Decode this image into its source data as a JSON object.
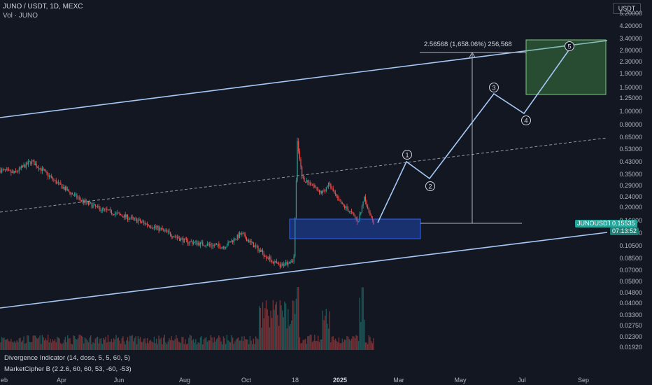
{
  "header": {
    "title": "JUNO / USDT, 1D, MEXC",
    "volume_label": "Vol · JUNO"
  },
  "indicators": {
    "divergence": "Divergence Indicator (14, dose, 5, 5, 60, 5)",
    "marketcipher": "MarketCipher B (2.2.6, 60, 60, 53, -60, -53)"
  },
  "price_axis": {
    "unit": "USDT",
    "labels": [
      "5.20000",
      "4.20000",
      "3.40000",
      "2.80000",
      "2.30000",
      "1.90000",
      "1.50000",
      "1.25000",
      "1.00000",
      "0.80000",
      "0.65000",
      "0.53000",
      "0.43000",
      "0.35000",
      "0.29000",
      "0.24000",
      "0.20000",
      "0.16000",
      "0.13000",
      "0.10500",
      "0.08500",
      "0.07000",
      "0.05800",
      "0.04800",
      "0.04000",
      "0.03300",
      "0.02750",
      "0.02300",
      "0.01920"
    ]
  },
  "time_axis": {
    "labels": [
      "eb",
      "Apr",
      "Jun",
      "Aug",
      "Oct",
      "18",
      "2025",
      "Mar",
      "May",
      "Jul",
      "Sep"
    ]
  },
  "current": {
    "symbol": "JUNOUSDT",
    "price": "0.15535",
    "countdown": "07:13:52"
  },
  "measure": {
    "text": "2.56568 (1,658.06%) 256,568"
  },
  "waves": [
    "1",
    "2",
    "3",
    "4",
    "5"
  ],
  "colors": {
    "up": "#26a69a",
    "down": "#ef5350",
    "channel": "#a5c8f5",
    "box": "#2962ff",
    "target": "#4caf50"
  },
  "chart_data": {
    "type": "candlestick",
    "symbol": "JUNO/USDT",
    "interval": "1D",
    "exchange": "MEXC",
    "y_scale": "log",
    "y_range": [
      0.0192,
      5.2
    ],
    "last_price": 0.15535,
    "measure": {
      "change": 2.56568,
      "change_percent": 1658.06,
      "ticks": 256568
    },
    "wave_targets": [
      {
        "label": "1",
        "price": 0.43
      },
      {
        "label": "2",
        "price": 0.3
      },
      {
        "label": "3",
        "price": 1.5
      },
      {
        "label": "4",
        "price": 1.05
      },
      {
        "label": "5",
        "price": 2.8
      }
    ]
  }
}
